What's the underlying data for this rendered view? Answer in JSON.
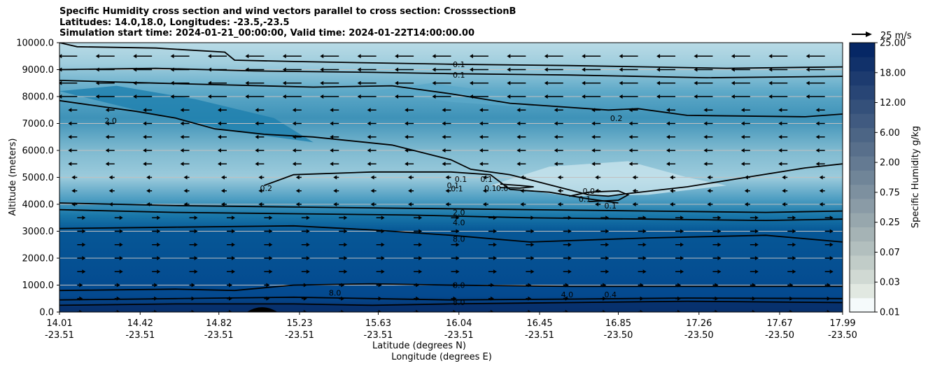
{
  "title": {
    "line1": "Specific Humidity cross section and wind vectors parallel to cross section: CrosssectionB",
    "line2": "Latitudes: 14.0,18.0, Longitudes: -23.5,-23.5",
    "line3": "Simulation start time: 2024-01-21_00:00:00, Valid time: 2024-01-22T14:00:00.00"
  },
  "axes": {
    "ylabel": "Altitude (meters)",
    "xlabel_lat": "Latitude (degrees N)",
    "xlabel_lon": "Longitude (degrees E)",
    "colorbar_label": "Specific Humidity g/kg",
    "vector_reference": "25 m/s"
  },
  "colors": {
    "min_fill": "#f5fafb",
    "max_fill": "#062765",
    "contour_line": "#000000",
    "grid": "#c0c0c0",
    "terrain": "#000000"
  },
  "chart_data": {
    "type": "heatmap",
    "title": "Specific Humidity cross section and wind vectors parallel to cross section: CrosssectionB",
    "ylabel": "Altitude (meters)",
    "ylim": [
      0,
      10000
    ],
    "y_ticks": [
      "0.0",
      "1000.0",
      "2000.0",
      "3000.0",
      "4000.0",
      "5000.0",
      "6000.0",
      "7000.0",
      "8000.0",
      "9000.0",
      "10000.0"
    ],
    "x_ticks": [
      {
        "lat": "14.01",
        "lon": "-23.51"
      },
      {
        "lat": "14.42",
        "lon": "-23.51"
      },
      {
        "lat": "14.82",
        "lon": "-23.51"
      },
      {
        "lat": "15.23",
        "lon": "-23.51"
      },
      {
        "lat": "15.63",
        "lon": "-23.51"
      },
      {
        "lat": "16.04",
        "lon": "-23.51"
      },
      {
        "lat": "16.45",
        "lon": "-23.51"
      },
      {
        "lat": "16.85",
        "lon": "-23.50"
      },
      {
        "lat": "17.26",
        "lon": "-23.50"
      },
      {
        "lat": "17.67",
        "lon": "-23.50"
      },
      {
        "lat": "17.99",
        "lon": "-23.50"
      }
    ],
    "x_range_lat": [
      14.01,
      17.99
    ],
    "colorbar_ticks": [
      "0.01",
      "0.03",
      "0.07",
      "0.25",
      "0.75",
      "2.00",
      "6.00",
      "12.00",
      "18.00",
      "25.00"
    ],
    "colorbar_levels": 19,
    "grid": "horizontal",
    "contour_levels": [
      "0.1",
      "0.2",
      "2.0",
      "4.0",
      "8.0"
    ],
    "contour_labels": [
      {
        "text": "0.1",
        "lat": 16.04,
        "alt": 9200
      },
      {
        "text": "0.1",
        "lat": 16.04,
        "alt": 8800
      },
      {
        "text": "0.2",
        "lat": 16.84,
        "alt": 7200
      },
      {
        "text": "2.0",
        "lat": 14.27,
        "alt": 7100
      },
      {
        "text": "0.1",
        "lat": 16.05,
        "alt": 4930
      },
      {
        "text": "0.1",
        "lat": 16.18,
        "alt": 4930
      },
      {
        "text": "0.1",
        "lat": 16.03,
        "alt": 4580
      },
      {
        "text": "0.2",
        "lat": 15.06,
        "alt": 4600
      },
      {
        "text": "0.1",
        "lat": 16.01,
        "alt": 4700
      },
      {
        "text": "0.1",
        "lat": 16.2,
        "alt": 4600
      },
      {
        "text": "0.0",
        "lat": 16.26,
        "alt": 4600
      },
      {
        "text": "0.1",
        "lat": 16.68,
        "alt": 4200
      },
      {
        "text": "0.0",
        "lat": 16.7,
        "alt": 4500
      },
      {
        "text": "0.1",
        "lat": 16.81,
        "alt": 3950
      },
      {
        "text": "2.0",
        "lat": 16.04,
        "alt": 3700
      },
      {
        "text": "4.0",
        "lat": 16.04,
        "alt": 3330
      },
      {
        "text": "8.0",
        "lat": 16.04,
        "alt": 2720
      },
      {
        "text": "8.0",
        "lat": 16.04,
        "alt": 1000
      },
      {
        "text": "8.0",
        "lat": 16.04,
        "alt": 370
      },
      {
        "text": "8.0",
        "lat": 15.41,
        "alt": 720
      },
      {
        "text": "4.0",
        "lat": 16.59,
        "alt": 650
      },
      {
        "text": "0.4",
        "lat": 16.81,
        "alt": 650
      }
    ],
    "contour_lines": [
      {
        "name": "0.1",
        "points": [
          [
            14.01,
            10000
          ],
          [
            14.1,
            9850
          ],
          [
            14.5,
            9800
          ],
          [
            14.85,
            9650
          ],
          [
            14.9,
            9350
          ],
          [
            15.2,
            9300
          ],
          [
            15.6,
            9250
          ],
          [
            16.0,
            9200
          ],
          [
            16.6,
            9150
          ],
          [
            17.4,
            9050
          ],
          [
            17.99,
            9100
          ]
        ]
      },
      {
        "name": "0.1",
        "points": [
          [
            14.01,
            9000
          ],
          [
            14.5,
            9050
          ],
          [
            15.0,
            8950
          ],
          [
            15.6,
            8900
          ],
          [
            16.0,
            8850
          ],
          [
            16.6,
            8800
          ],
          [
            17.3,
            8700
          ],
          [
            17.99,
            8750
          ]
        ]
      },
      {
        "name": "0.2",
        "points": [
          [
            14.01,
            8600
          ],
          [
            14.5,
            8500
          ],
          [
            15.3,
            8350
          ],
          [
            15.7,
            8400
          ],
          [
            16.0,
            8100
          ],
          [
            16.3,
            7750
          ],
          [
            16.8,
            7500
          ],
          [
            16.95,
            7550
          ],
          [
            17.2,
            7300
          ],
          [
            17.8,
            7250
          ],
          [
            17.99,
            7350
          ]
        ]
      },
      {
        "name": "2.0",
        "points": [
          [
            14.01,
            7850
          ],
          [
            14.25,
            7600
          ],
          [
            14.4,
            7450
          ],
          [
            14.6,
            7200
          ],
          [
            14.8,
            6800
          ],
          [
            15.05,
            6600
          ],
          [
            15.3,
            6500
          ],
          [
            15.7,
            6200
          ],
          [
            16.0,
            5650
          ],
          [
            16.1,
            5300
          ],
          [
            16.3,
            5100
          ],
          [
            16.7,
            4350
          ],
          [
            16.8,
            4300
          ],
          [
            16.9,
            4400
          ],
          [
            17.2,
            4650
          ],
          [
            17.5,
            5000
          ],
          [
            17.8,
            5350
          ],
          [
            17.99,
            5500
          ]
        ]
      },
      {
        "name": "0.1",
        "points": [
          [
            15.05,
            4700
          ],
          [
            15.2,
            5100
          ],
          [
            15.6,
            5200
          ],
          [
            16.0,
            5200
          ],
          [
            16.2,
            5100
          ],
          [
            16.3,
            4550
          ],
          [
            16.5,
            4450
          ],
          [
            16.7,
            4200
          ],
          [
            16.85,
            4050
          ]
        ]
      },
      {
        "name": "0.2",
        "points": [
          [
            16.25,
            4750
          ],
          [
            16.35,
            4700
          ],
          [
            16.42,
            4650
          ],
          [
            16.35,
            4600
          ],
          [
            16.25,
            4620
          ]
        ]
      },
      {
        "name": "0.1",
        "points": [
          [
            16.6,
            4300
          ],
          [
            16.7,
            4450
          ],
          [
            16.85,
            4500
          ],
          [
            16.9,
            4350
          ],
          [
            16.85,
            4150
          ],
          [
            16.7,
            4100
          ]
        ]
      },
      {
        "name": "2.0",
        "points": [
          [
            14.01,
            4050
          ],
          [
            14.6,
            3950
          ],
          [
            15.2,
            3900
          ],
          [
            15.8,
            3850
          ],
          [
            16.4,
            3800
          ],
          [
            17.0,
            3750
          ],
          [
            17.6,
            3700
          ],
          [
            17.99,
            3750
          ]
        ]
      },
      {
        "name": "4.0",
        "points": [
          [
            14.01,
            3800
          ],
          [
            14.6,
            3700
          ],
          [
            15.2,
            3650
          ],
          [
            15.8,
            3600
          ],
          [
            16.4,
            3500
          ],
          [
            17.0,
            3450
          ],
          [
            17.6,
            3400
          ],
          [
            17.99,
            3450
          ]
        ]
      },
      {
        "name": "8.0",
        "points": [
          [
            14.01,
            3100
          ],
          [
            14.6,
            3150
          ],
          [
            15.2,
            3200
          ],
          [
            15.6,
            3050
          ],
          [
            16.0,
            2850
          ],
          [
            16.4,
            2600
          ],
          [
            17.0,
            2750
          ],
          [
            17.6,
            2850
          ],
          [
            17.99,
            2600
          ]
        ]
      },
      {
        "name": "8.0",
        "points": [
          [
            14.01,
            800
          ],
          [
            14.6,
            850
          ],
          [
            14.9,
            800
          ],
          [
            15.2,
            1000
          ],
          [
            15.6,
            1050
          ],
          [
            16.0,
            1000
          ],
          [
            16.6,
            950
          ],
          [
            17.2,
            950
          ],
          [
            17.99,
            950
          ]
        ]
      },
      {
        "name": "8.0",
        "points": [
          [
            14.01,
            450
          ],
          [
            14.6,
            500
          ],
          [
            15.2,
            550
          ],
          [
            15.6,
            500
          ],
          [
            16.0,
            450
          ],
          [
            16.6,
            480
          ],
          [
            17.2,
            520
          ],
          [
            17.99,
            500
          ]
        ]
      },
      {
        "name": "4.0",
        "points": [
          [
            14.01,
            250
          ],
          [
            14.6,
            300
          ],
          [
            15.2,
            300
          ],
          [
            15.6,
            250
          ],
          [
            16.0,
            300
          ],
          [
            16.6,
            350
          ],
          [
            17.2,
            400
          ],
          [
            17.99,
            350
          ]
        ]
      }
    ],
    "terrain_peak": {
      "lat": 15.04,
      "alt": 150
    }
  }
}
